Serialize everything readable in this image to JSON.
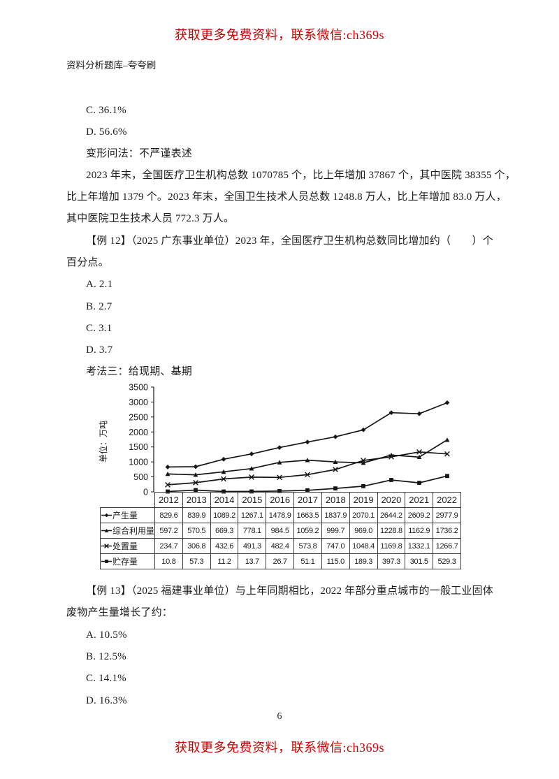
{
  "page": {
    "header_banner": "获取更多免费资料，联系微信:ch369s",
    "footer_banner": "获取更多免费资料，联系微信:ch369s",
    "doc_title": "资料分析题库–夸夸刷",
    "page_number": "6",
    "accent_red": "#cc0000"
  },
  "content": {
    "prev_options": [
      "C. 36.1%",
      "D. 56.6%"
    ],
    "note": "变形问法：不严谨表述",
    "passage_lines": [
      "2023 年末，全国医疗卫生机构总数 1070785 个，比上年增加 37867 个，其中医院 38355 个，",
      "比上年增加 1379 个。2023 年末，全国卫生技术人员总数 1248.8 万人，比上年增加 83.0 万人，",
      "其中医院卫生技术人员 772.3 万人。"
    ],
    "q12_lines": [
      "【例 12】（2025 广东事业单位）2023 年，全国医疗卫生机构总数同比增加约（　　）个",
      "百分点。"
    ],
    "q12_options": [
      "A. 2.1",
      "B. 2.7",
      "C. 3.1",
      "D. 3.7"
    ],
    "method_heading": "考法三：给现期、基期",
    "q13_lines": [
      "【例 13】（2025 福建事业单位）与上年同期相比，2022 年部分重点城市的一般工业固体",
      "废物产生量增长了约："
    ],
    "q13_options": [
      "A. 10.5%",
      "B. 12.5%",
      "C. 14.1%",
      "D. 16.3%"
    ]
  },
  "chart_data": {
    "type": "line",
    "title": "",
    "ylabel": "单位：万吨",
    "xlabel": "",
    "ylim": [
      0,
      3500
    ],
    "ytick_step": 500,
    "grid": false,
    "legend_position": "table-left",
    "line_color": "#161616",
    "categories": [
      "2012",
      "2013",
      "2014",
      "2015",
      "2016",
      "2017",
      "2018",
      "2019",
      "2020",
      "2021",
      "2022"
    ],
    "series": [
      {
        "name": "产生量",
        "marker": "diamond",
        "values": [
          829.6,
          839.9,
          1089.2,
          1267.1,
          1478.9,
          1663.5,
          1837.9,
          2070.1,
          2644.2,
          2609.2,
          2977.9
        ]
      },
      {
        "name": "综合利用量",
        "marker": "triangle",
        "values": [
          597.2,
          570.5,
          669.3,
          778.1,
          984.5,
          1059.2,
          999.7,
          969.0,
          1228.8,
          1162.9,
          1736.2
        ]
      },
      {
        "name": "处置量",
        "marker": "cross",
        "values": [
          234.7,
          306.8,
          432.6,
          491.3,
          482.4,
          573.8,
          747.0,
          1048.4,
          1169.8,
          1332.1,
          1266.7
        ]
      },
      {
        "name": "贮存量",
        "marker": "square",
        "values": [
          10.8,
          57.3,
          11.2,
          13.7,
          26.7,
          51.1,
          115.0,
          189.3,
          397.3,
          301.5,
          529.3
        ]
      }
    ]
  }
}
